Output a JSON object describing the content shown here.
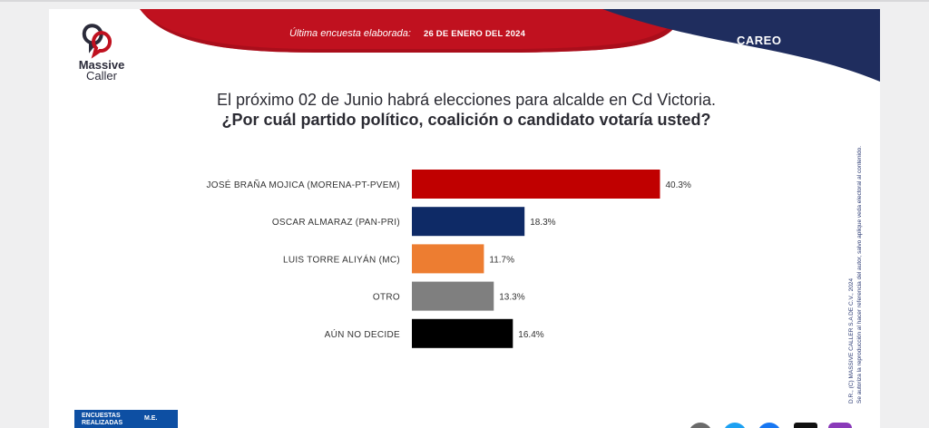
{
  "header": {
    "brand_line1": "Massive",
    "brand_line2": "Caller",
    "survey_label": "Última encuesta elaborada:",
    "survey_date": "26 DE ENERO DEL 2024",
    "section": "CAREO",
    "colors": {
      "red": "#c0111f",
      "navy": "#1f2d5e"
    }
  },
  "question": {
    "line1": "El próximo 02 de Junio habrá elecciones para alcalde en Cd Victoria.",
    "line2": "¿Por cuál partido político, coalición o candidato votaría usted?"
  },
  "chart_data": {
    "type": "bar",
    "orientation": "horizontal",
    "categories": [
      "JOSÉ BRAÑA MOJICA (MORENA-PT-PVEM)",
      "OSCAR ALMARAZ (PAN-PRI)",
      "LUIS TORRE ALIYÁN (MC)",
      "OTRO",
      "AÚN NO DECIDE"
    ],
    "values": [
      40.3,
      18.3,
      11.7,
      13.3,
      16.4
    ],
    "value_labels": [
      "40.3%",
      "18.3%",
      "11.7%",
      "13.3%",
      "16.4%"
    ],
    "colors": [
      "#c00000",
      "#0e2a66",
      "#ed7d31",
      "#7f7f7f",
      "#000000"
    ],
    "xlim": [
      0,
      50
    ],
    "grid": false
  },
  "legal": {
    "line1": "D.R., (C) MASSIVE CALLER S.A DE C.V., 2024",
    "line2": "Se autoriza la reproducción al hacer referencia del autor, salvo aplique veda electoral al contenido."
  },
  "footer": {
    "box_label": "ENCUESTAS REALIZADAS",
    "box_value": "M.E."
  }
}
